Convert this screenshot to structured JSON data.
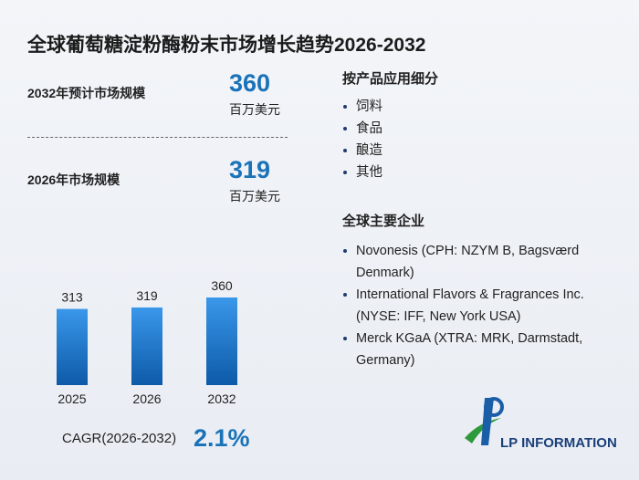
{
  "header": {
    "title": "全球葡萄糖淀粉酶粉末市场增长趋势2026-2032"
  },
  "stats": [
    {
      "label": "2032年预计市场规模",
      "value": "360",
      "unit": "百万美元"
    },
    {
      "label": "2026年市场规模",
      "value": "319",
      "unit": "百万美元"
    }
  ],
  "chart_data": {
    "type": "bar",
    "categories": [
      "2025",
      "2026",
      "2032"
    ],
    "values": [
      313,
      319,
      360
    ],
    "color": "#1a73c8"
  },
  "cagr": {
    "label": "CAGR(2026-2032)",
    "value": "2.1%"
  },
  "segments": {
    "title": "按产品应用细分",
    "items": [
      "饲料",
      "食品",
      "酿造",
      "其他"
    ]
  },
  "companies": {
    "title": "全球主要企业",
    "items": [
      "Novonesis (CPH: NZYM B, Bagsværd Denmark)",
      "International Flavors & Fragrances Inc. (NYSE: IFF, New York USA)",
      "Merck KGaA (XTRA: MRK, Darmstadt, Germany)"
    ]
  },
  "logo": {
    "text": "LP INFORMATION"
  }
}
